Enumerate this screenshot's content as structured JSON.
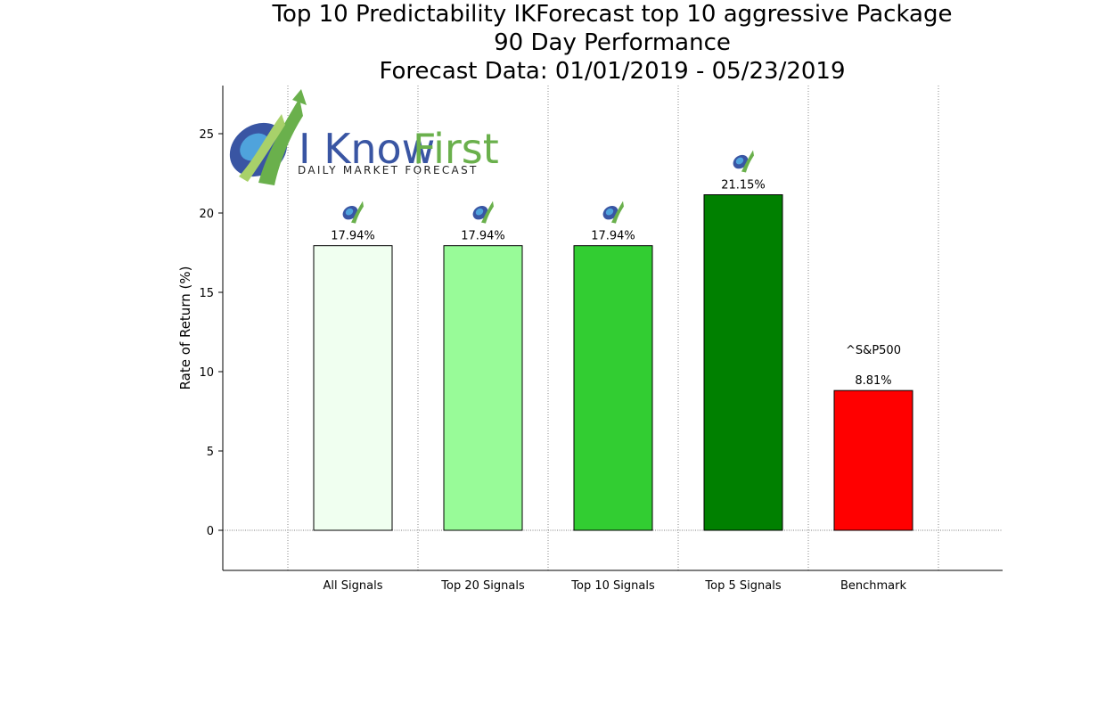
{
  "chart_data": {
    "type": "bar",
    "title": [
      "Top 10 Predictability IKForecast top 10 aggressive Package",
      "90 Day Performance",
      "Forecast Data: 01/01/2019 - 05/23/2019"
    ],
    "categories": [
      "All Signals",
      "Top 20 Signals",
      "Top 10 Signals",
      "Top 5 Signals",
      "Benchmark"
    ],
    "values": [
      17.94,
      17.94,
      17.94,
      21.15,
      8.81
    ],
    "data_labels": [
      "17.94%",
      "17.94%",
      "17.94%",
      "21.15%",
      "8.81%"
    ],
    "bar_colors": [
      "#f0fff0",
      "#98fb98",
      "#32cd32",
      "#008000",
      "#ff0000"
    ],
    "benchmark_label": "^S&P500",
    "ylabel": "Rate of Return (%)",
    "xlabel": "",
    "ylim": [
      -2.5,
      28
    ],
    "yticks": [
      0,
      5,
      10,
      15,
      20,
      25
    ],
    "grid": "vertical dotted lines between categories, dotted zero line",
    "legend": "none"
  },
  "logo": {
    "text_dark": "I Know",
    "text_light": "First",
    "tagline": "DAILY MARKET FORECAST",
    "colors": {
      "blue": "#3955a3",
      "green": "#6ab04c"
    }
  }
}
